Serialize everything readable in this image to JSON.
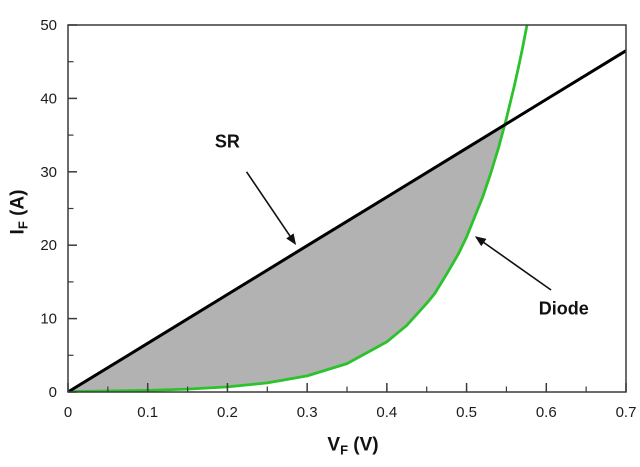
{
  "chart_data": {
    "type": "line",
    "title": "",
    "xlabel": {
      "main": "V",
      "sub": "F",
      "unit": " (V)"
    },
    "ylabel": {
      "main": "I",
      "sub": "F",
      "unit": " (A)"
    },
    "xlim": [
      0,
      0.7
    ],
    "ylim": [
      0,
      50
    ],
    "grid": false,
    "legend": false,
    "x_ticks": {
      "major": [
        0,
        0.1,
        0.2,
        0.3,
        0.4,
        0.5,
        0.6,
        0.7
      ],
      "labels": [
        "0",
        "0.1",
        "0.2",
        "0.3",
        "0.4",
        "0.5",
        "0.6",
        "0.7"
      ],
      "minor": [
        0.05,
        0.15,
        0.25,
        0.35,
        0.45,
        0.55,
        0.65
      ]
    },
    "y_ticks": {
      "major": [
        0,
        10,
        20,
        30,
        40,
        50
      ],
      "labels": [
        "0",
        "10",
        "20",
        "30",
        "40",
        "50"
      ],
      "minor": [
        5,
        15,
        25,
        35,
        45
      ]
    },
    "series": [
      {
        "name": "SR",
        "color": "#000000",
        "width": 3,
        "points": [
          [
            0,
            0
          ],
          [
            0.1,
            6.64
          ],
          [
            0.2,
            13.29
          ],
          [
            0.3,
            19.93
          ],
          [
            0.4,
            26.57
          ],
          [
            0.5,
            33.21
          ],
          [
            0.548,
            36.4
          ],
          [
            0.6,
            39.86
          ],
          [
            0.7,
            46.5
          ]
        ]
      },
      {
        "name": "Diode",
        "color": "#2cc22c",
        "width": 2.8,
        "points": [
          [
            0,
            0.07
          ],
          [
            0.05,
            0.13
          ],
          [
            0.1,
            0.22
          ],
          [
            0.15,
            0.39
          ],
          [
            0.2,
            0.7
          ],
          [
            0.25,
            1.24
          ],
          [
            0.3,
            2.19
          ],
          [
            0.35,
            3.87
          ],
          [
            0.4,
            6.84
          ],
          [
            0.425,
            9.09
          ],
          [
            0.45,
            12.08
          ],
          [
            0.46,
            13.41
          ],
          [
            0.475,
            16.05
          ],
          [
            0.49,
            18.87
          ],
          [
            0.5,
            21.13
          ],
          [
            0.52,
            26.5
          ],
          [
            0.53,
            29.7
          ],
          [
            0.54,
            33.26
          ],
          [
            0.55,
            37.26
          ],
          [
            0.56,
            41.75
          ],
          [
            0.565,
            44.2
          ],
          [
            0.57,
            46.77
          ],
          [
            0.578,
            51.2
          ]
        ]
      }
    ],
    "shaded_region": {
      "between": [
        "SR",
        "Diode"
      ],
      "from_x": 0,
      "to_x": 0.548,
      "color": "#b2b2b2"
    },
    "annotations": [
      {
        "label": "SR",
        "label_pos": [
          0.2,
          34.1
        ],
        "arrow_from": [
          0.224,
          30.0
        ],
        "arrow_to": [
          0.285,
          20.2
        ]
      },
      {
        "label": "Diode",
        "label_pos": [
          0.622,
          11.3
        ],
        "arrow_from": [
          0.606,
          13.9
        ],
        "arrow_to": [
          0.512,
          21.1
        ]
      }
    ],
    "colors": {
      "axis": "#3a3a3a",
      "tick_label": "#1c1c1c",
      "background": "#ffffff"
    }
  }
}
